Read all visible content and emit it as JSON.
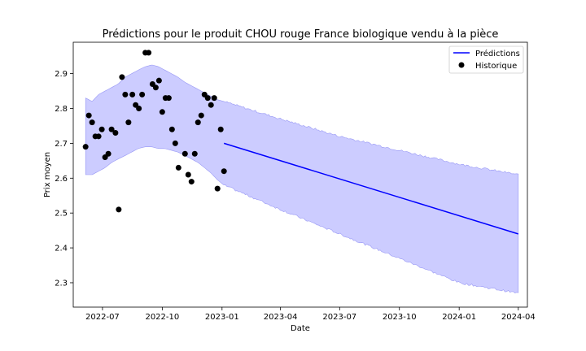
{
  "chart_data": {
    "type": "line",
    "title": "Prédictions pour le produit CHOU rouge France biologique vendu à la pièce",
    "xlabel": "Date",
    "ylabel": "Prix moyen",
    "xlim": [
      "2022-05-17",
      "2024-04-15"
    ],
    "ylim": [
      2.23,
      2.99
    ],
    "x_ticks": [
      "2022-07-01",
      "2022-10-01",
      "2023-01-01",
      "2023-04-01",
      "2023-07-01",
      "2023-10-01",
      "2024-01-01",
      "2024-04-01"
    ],
    "x_tick_labels": [
      "2022-07",
      "2022-10",
      "2023-01",
      "2023-04",
      "2023-07",
      "2023-10",
      "2024-01",
      "2024-04"
    ],
    "y_ticks": [
      2.3,
      2.4,
      2.5,
      2.6,
      2.7,
      2.8,
      2.9
    ],
    "y_tick_labels": [
      "2.3",
      "2.4",
      "2.5",
      "2.6",
      "2.7",
      "2.8",
      "2.9"
    ],
    "legend": {
      "position": "top-right",
      "entries": [
        "Prédictions",
        "Historique"
      ]
    },
    "grid": false,
    "colors": {
      "prediction": "#0000ff",
      "band": "#ccccff",
      "band_edge": "#9999f5",
      "history": "#000000"
    },
    "series": [
      {
        "name": "Historique",
        "type": "scatter",
        "points": [
          [
            "2022-06-05",
            2.69
          ],
          [
            "2022-06-10",
            2.78
          ],
          [
            "2022-06-15",
            2.76
          ],
          [
            "2022-06-20",
            2.72
          ],
          [
            "2022-06-25",
            2.72
          ],
          [
            "2022-06-30",
            2.74
          ],
          [
            "2022-07-05",
            2.66
          ],
          [
            "2022-07-10",
            2.67
          ],
          [
            "2022-07-15",
            2.74
          ],
          [
            "2022-07-21",
            2.73
          ],
          [
            "2022-07-26",
            2.51
          ],
          [
            "2022-07-31",
            2.89
          ],
          [
            "2022-08-05",
            2.84
          ],
          [
            "2022-08-10",
            2.76
          ],
          [
            "2022-08-16",
            2.84
          ],
          [
            "2022-08-21",
            2.81
          ],
          [
            "2022-08-26",
            2.8
          ],
          [
            "2022-08-31",
            2.84
          ],
          [
            "2022-09-05",
            2.96
          ],
          [
            "2022-09-10",
            2.96
          ],
          [
            "2022-09-16",
            2.87
          ],
          [
            "2022-09-21",
            2.86
          ],
          [
            "2022-09-26",
            2.88
          ],
          [
            "2022-10-01",
            2.79
          ],
          [
            "2022-10-06",
            2.83
          ],
          [
            "2022-10-11",
            2.83
          ],
          [
            "2022-10-16",
            2.74
          ],
          [
            "2022-10-21",
            2.7
          ],
          [
            "2022-10-26",
            2.63
          ],
          [
            "2022-11-05",
            2.67
          ],
          [
            "2022-11-10",
            2.61
          ],
          [
            "2022-11-15",
            2.59
          ],
          [
            "2022-11-20",
            2.67
          ],
          [
            "2022-11-25",
            2.76
          ],
          [
            "2022-11-30",
            2.78
          ],
          [
            "2022-12-05",
            2.84
          ],
          [
            "2022-12-10",
            2.83
          ],
          [
            "2022-12-15",
            2.81
          ],
          [
            "2022-12-20",
            2.83
          ],
          [
            "2022-12-25",
            2.57
          ],
          [
            "2022-12-30",
            2.74
          ],
          [
            "2023-01-04",
            2.62
          ]
        ]
      },
      {
        "name": "Prédictions",
        "type": "line",
        "points": [
          [
            "2023-01-04",
            2.7
          ],
          [
            "2024-04-01",
            2.44
          ]
        ],
        "band_upper": [
          [
            "2022-06-05",
            2.83
          ],
          [
            "2022-06-15",
            2.82
          ],
          [
            "2022-06-25",
            2.84
          ],
          [
            "2022-07-05",
            2.85
          ],
          [
            "2022-07-15",
            2.86
          ],
          [
            "2022-07-25",
            2.87
          ],
          [
            "2022-08-05",
            2.89
          ],
          [
            "2022-08-15",
            2.9
          ],
          [
            "2022-08-25",
            2.91
          ],
          [
            "2022-09-05",
            2.92
          ],
          [
            "2022-09-15",
            2.925
          ],
          [
            "2022-09-25",
            2.92
          ],
          [
            "2022-10-05",
            2.91
          ],
          [
            "2022-10-15",
            2.9
          ],
          [
            "2022-10-25",
            2.89
          ],
          [
            "2022-11-05",
            2.875
          ],
          [
            "2022-11-15",
            2.865
          ],
          [
            "2022-11-25",
            2.855
          ],
          [
            "2022-12-05",
            2.845
          ],
          [
            "2022-12-15",
            2.835
          ],
          [
            "2022-12-25",
            2.825
          ],
          [
            "2023-01-04",
            2.82
          ],
          [
            "2023-04-01",
            2.77
          ],
          [
            "2023-07-01",
            2.72
          ],
          [
            "2023-10-01",
            2.68
          ],
          [
            "2024-01-01",
            2.64
          ],
          [
            "2024-04-01",
            2.61
          ]
        ],
        "band_lower": [
          [
            "2022-06-05",
            2.61
          ],
          [
            "2022-06-15",
            2.61
          ],
          [
            "2022-06-25",
            2.62
          ],
          [
            "2022-07-05",
            2.63
          ],
          [
            "2022-07-15",
            2.645
          ],
          [
            "2022-07-25",
            2.655
          ],
          [
            "2022-08-05",
            2.665
          ],
          [
            "2022-08-15",
            2.675
          ],
          [
            "2022-08-25",
            2.685
          ],
          [
            "2022-09-05",
            2.69
          ],
          [
            "2022-09-15",
            2.69
          ],
          [
            "2022-09-25",
            2.685
          ],
          [
            "2022-10-05",
            2.685
          ],
          [
            "2022-10-15",
            2.68
          ],
          [
            "2022-10-25",
            2.675
          ],
          [
            "2022-11-05",
            2.665
          ],
          [
            "2022-11-15",
            2.655
          ],
          [
            "2022-11-25",
            2.645
          ],
          [
            "2022-12-05",
            2.63
          ],
          [
            "2022-12-15",
            2.615
          ],
          [
            "2022-12-25",
            2.595
          ],
          [
            "2023-01-04",
            2.58
          ],
          [
            "2023-04-01",
            2.51
          ],
          [
            "2023-07-01",
            2.44
          ],
          [
            "2023-10-01",
            2.37
          ],
          [
            "2024-01-01",
            2.3
          ],
          [
            "2024-04-01",
            2.27
          ]
        ]
      }
    ]
  }
}
